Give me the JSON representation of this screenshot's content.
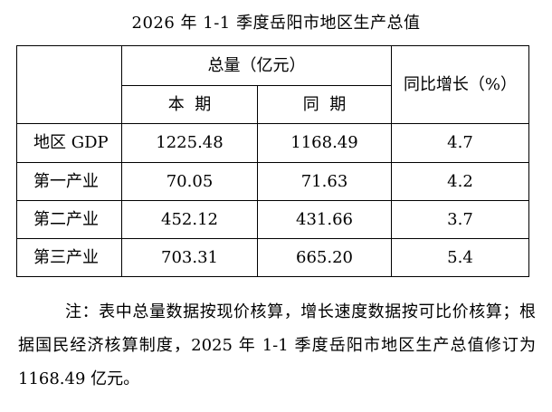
{
  "title": "2026 年 1-1 季度岳阳市地区生产总值",
  "table": {
    "header_total": "总量（亿元）",
    "header_current": "本  期",
    "header_previous": "同  期",
    "header_growth": "同比增长（%）",
    "rows": [
      {
        "label": "地区 GDP",
        "current": "1225.48",
        "previous": "1168.49",
        "growth": "4.7"
      },
      {
        "label": "第一产业",
        "current": "70.05",
        "previous": "71.63",
        "growth": "4.2"
      },
      {
        "label": "第二产业",
        "current": "452.12",
        "previous": "431.66",
        "growth": "3.7"
      },
      {
        "label": "第三产业",
        "current": "703.31",
        "previous": "665.20",
        "growth": "5.4"
      }
    ]
  },
  "note": "注：表中总量数据按现价核算，增长速度数据按可比价核算；根据国民经济核算制度，2025 年 1-1 季度岳阳市地区生产总值修订为 1168.49 亿元。"
}
